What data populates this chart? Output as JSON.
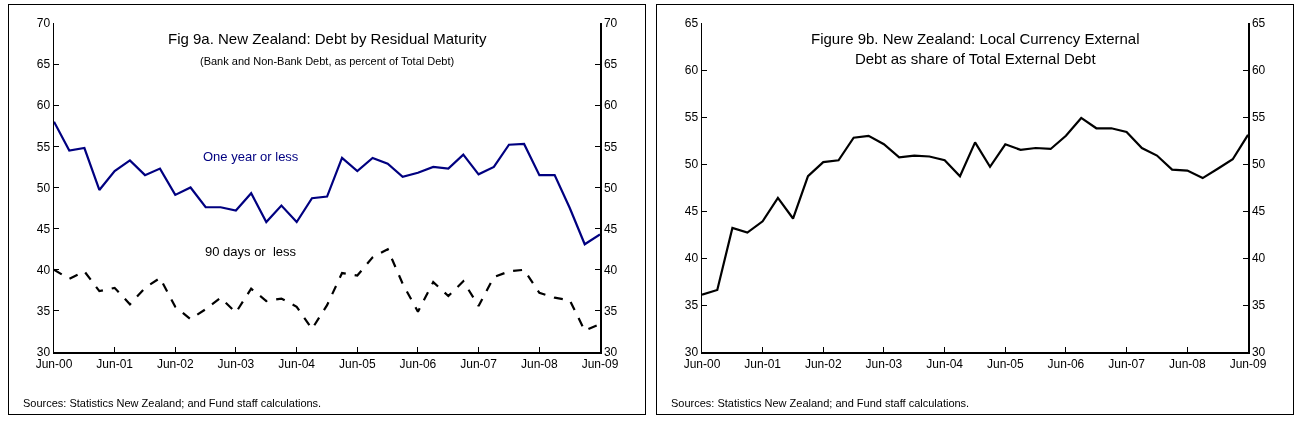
{
  "chart_data": [
    {
      "type": "line",
      "title": "Fig 9a. New Zealand: Debt by Residual Maturity",
      "subtitle": "(Bank and Non-Bank Debt, as percent of Total Debt)",
      "x": [
        "2000-06",
        "2000-09",
        "2000-12",
        "2001-03",
        "2001-06",
        "2001-09",
        "2001-12",
        "2002-03",
        "2002-06",
        "2002-09",
        "2002-12",
        "2003-03",
        "2003-06",
        "2003-09",
        "2003-12",
        "2004-03",
        "2004-06",
        "2004-09",
        "2004-12",
        "2005-03",
        "2005-06",
        "2005-09",
        "2005-12",
        "2006-03",
        "2006-06",
        "2006-09",
        "2006-12",
        "2007-03",
        "2007-06",
        "2007-09",
        "2007-12",
        "2008-03",
        "2008-06",
        "2008-09",
        "2008-12",
        "2009-03",
        "2009-06"
      ],
      "series": [
        {
          "name": "One year or less",
          "color": "#000080",
          "line_style": "solid",
          "values": [
            58,
            54.5,
            54.8,
            49.7,
            52,
            53.3,
            51.5,
            52.3,
            49.1,
            50,
            47.6,
            47.6,
            47.2,
            49.3,
            45.8,
            47.8,
            45.8,
            48.7,
            48.9,
            53.6,
            52,
            53.6,
            52.9,
            51.3,
            51.8,
            52.5,
            52.3,
            54,
            51.6,
            52.5,
            55.2,
            55.3,
            51.5,
            51.5,
            47.5,
            43.1,
            44.3
          ]
        },
        {
          "name": "90 days or  less",
          "color": "#000000",
          "line_style": "dashed",
          "values": [
            40,
            38.9,
            39.8,
            37.4,
            37.8,
            35.8,
            37.8,
            39,
            35.5,
            34,
            35.2,
            36.6,
            34.8,
            37.7,
            36.2,
            36.5,
            35.5,
            32.8,
            35.7,
            39.6,
            39.3,
            41.5,
            42.5,
            38.3,
            34.9,
            38.5,
            36.8,
            38.6,
            35.6,
            39.1,
            39.8,
            40,
            37.2,
            36.6,
            36.3,
            32.6,
            33.4
          ]
        }
      ],
      "xlim": [
        "2000-06",
        "2009-06"
      ],
      "xticks": [
        {
          "value": "2000-06",
          "label": "Jun-00"
        },
        {
          "value": "2001-06",
          "label": "Jun-01"
        },
        {
          "value": "2002-06",
          "label": "Jun-02"
        },
        {
          "value": "2003-06",
          "label": "Jun-03"
        },
        {
          "value": "2004-06",
          "label": "Jun-04"
        },
        {
          "value": "2005-06",
          "label": "Jun-05"
        },
        {
          "value": "2006-06",
          "label": "Jun-06"
        },
        {
          "value": "2007-06",
          "label": "Jun-07"
        },
        {
          "value": "2008-06",
          "label": "Jun-08"
        },
        {
          "value": "2009-06",
          "label": "Jun-09"
        }
      ],
      "ylim": [
        30,
        70
      ],
      "yticks": [
        30,
        35,
        40,
        45,
        50,
        55,
        60,
        65,
        70
      ],
      "y2lim": [
        30,
        70
      ],
      "y2ticks": [
        30,
        35,
        40,
        45,
        50,
        55,
        60,
        65,
        70
      ],
      "grid": false,
      "legend": false,
      "marker": "none",
      "annotations": [
        "Sources: Statistics New Zealand; and Fund staff calculations."
      ]
    },
    {
      "type": "line",
      "title": "Figure 9b. New Zealand: Local Currency External\nDebt as share of Total External Debt",
      "x": [
        "2000-06",
        "2000-09",
        "2000-12",
        "2001-03",
        "2001-06",
        "2001-09",
        "2001-12",
        "2002-03",
        "2002-06",
        "2002-09",
        "2002-12",
        "2003-03",
        "2003-06",
        "2003-09",
        "2003-12",
        "2004-03",
        "2004-06",
        "2004-09",
        "2004-12",
        "2005-03",
        "2005-06",
        "2005-09",
        "2005-12",
        "2006-03",
        "2006-06",
        "2006-09",
        "2006-12",
        "2007-03",
        "2007-06",
        "2007-09",
        "2007-12",
        "2008-03",
        "2008-06",
        "2008-09",
        "2008-12",
        "2009-03",
        "2009-06"
      ],
      "series": [
        {
          "color": "#000000",
          "line_style": "solid",
          "values": [
            36.1,
            36.6,
            43.2,
            42.7,
            43.9,
            46.4,
            44.2,
            48.7,
            50.2,
            50.4,
            52.8,
            53,
            52.1,
            50.7,
            50.9,
            50.8,
            50.4,
            48.7,
            52.3,
            49.7,
            52.1,
            51.5,
            51.7,
            51.6,
            53,
            54.9,
            53.8,
            53.8,
            53.4,
            51.7,
            50.9,
            49.4,
            49.3,
            48.5,
            49.5,
            50.5,
            53.1
          ]
        }
      ],
      "xlim": [
        "2000-06",
        "2009-06"
      ],
      "xticks": [
        {
          "value": "2000-06",
          "label": "Jun-00"
        },
        {
          "value": "2001-06",
          "label": "Jun-01"
        },
        {
          "value": "2002-06",
          "label": "Jun-02"
        },
        {
          "value": "2003-06",
          "label": "Jun-03"
        },
        {
          "value": "2004-06",
          "label": "Jun-04"
        },
        {
          "value": "2005-06",
          "label": "Jun-05"
        },
        {
          "value": "2006-06",
          "label": "Jun-06"
        },
        {
          "value": "2007-06",
          "label": "Jun-07"
        },
        {
          "value": "2008-06",
          "label": "Jun-08"
        },
        {
          "value": "2009-06",
          "label": "Jun-09"
        }
      ],
      "ylim": [
        30,
        65
      ],
      "yticks": [
        30,
        35,
        40,
        45,
        50,
        55,
        60,
        65
      ],
      "y2lim": [
        30,
        65
      ],
      "y2ticks": [
        30,
        35,
        40,
        45,
        50,
        55,
        60,
        65
      ],
      "grid": false,
      "legend": false,
      "marker": "none",
      "annotations": [
        "Sources: Statistics New Zealand; and Fund staff calculations."
      ]
    }
  ]
}
